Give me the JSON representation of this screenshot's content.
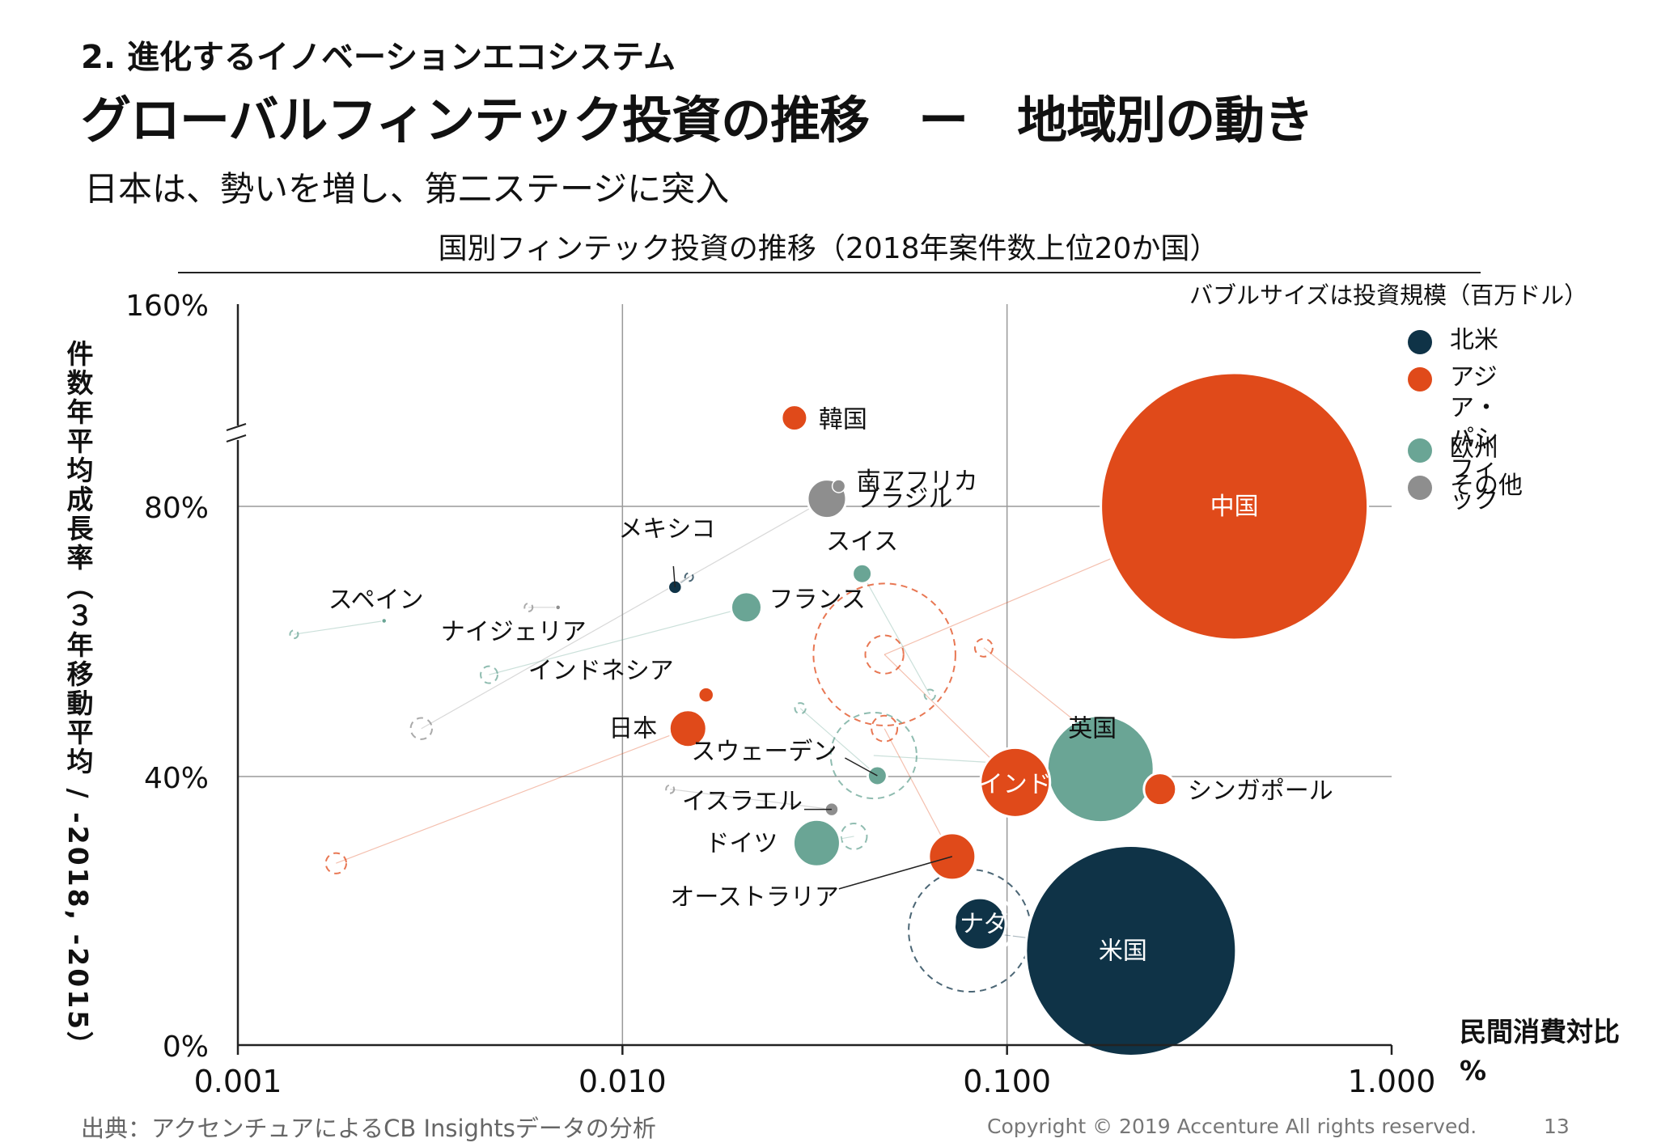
{
  "section": "2. 進化するイノベーションエコシステム",
  "title": "グローバルフィンテック投資の推移　ー　地域別の動き",
  "subtitle": "日本は、勢いを増し、第二ステージに突入",
  "source": "出典：アクセンチュアによるCB Insightsデータの分析",
  "copyright": "Copyright © 2019 Accenture  All rights reserved.",
  "page_number": "13",
  "colors": {
    "north_america": "#0f3347",
    "asia_pacific": "#e04a1a",
    "europe": "#6aa595",
    "other": "#8e8e8e"
  },
  "chart_data": {
    "type": "scatter",
    "title": "国別フィンテック投資の推移（2018年案件数上位20か国）",
    "xlabel": "民間消費対比 %",
    "ylabel": "件数年平均成長率（３年移動平均 / -2018, -2015）",
    "x_scale": "log",
    "xlim": [
      0.001,
      1.0
    ],
    "x_ticks": [
      "0.001",
      "0.010",
      "0.100",
      "1.000"
    ],
    "y_ticks": [
      "0%",
      "40%",
      "80%",
      "160%"
    ],
    "y_axis_break": true,
    "grid": true,
    "bubble_note": "バブルサイズは投資規模（百万ドル）",
    "legend": {
      "position": "top-right",
      "items": [
        {
          "label": "北米",
          "region": "north_america"
        },
        {
          "label": "アジア・\nパシフィック",
          "region": "asia_pacific"
        },
        {
          "label": "欧州",
          "region": "europe"
        },
        {
          "label": "その他",
          "region": "other"
        }
      ]
    },
    "series": [
      {
        "name": "中国",
        "region": "asia_pacific",
        "x": 0.39,
        "y": 0.8,
        "size": 165,
        "prev": {
          "x": 0.048,
          "y": 0.58
        }
      },
      {
        "name": "米国",
        "region": "north_america",
        "x": 0.21,
        "y": 0.14,
        "size": 130,
        "prev": {
          "x": 0.08,
          "y": 0.17
        }
      },
      {
        "name": "英国",
        "region": "europe",
        "x": 0.175,
        "y": 0.41,
        "size": 66,
        "prev": {
          "x": 0.045,
          "y": 0.43
        }
      },
      {
        "name": "インド",
        "region": "asia_pacific",
        "x": 0.105,
        "y": 0.39,
        "size": 43,
        "prev": {
          "x": 0.048,
          "y": 0.58
        }
      },
      {
        "name": "シンガポール",
        "region": "asia_pacific",
        "x": 0.25,
        "y": 0.38,
        "size": 20,
        "prev": {
          "x": 0.087,
          "y": 0.59
        }
      },
      {
        "name": "カナダ",
        "region": "north_america",
        "x": 0.085,
        "y": 0.18,
        "size": 32,
        "prev": {
          "x": 0.085,
          "y": 0.18
        }
      },
      {
        "name": "オーストラリア",
        "region": "asia_pacific",
        "x": 0.072,
        "y": 0.28,
        "size": 29,
        "prev": {
          "x": 0.048,
          "y": 0.47
        }
      },
      {
        "name": "ドイツ",
        "region": "europe",
        "x": 0.032,
        "y": 0.3,
        "size": 29,
        "prev": {
          "x": 0.04,
          "y": 0.31
        }
      },
      {
        "name": "イスラエル",
        "region": "other",
        "x": 0.035,
        "y": 0.35,
        "size": 8,
        "prev": {
          "x": 0.0133,
          "y": 0.38
        }
      },
      {
        "name": "スウェーデン",
        "region": "europe",
        "x": 0.046,
        "y": 0.4,
        "size": 12,
        "prev": {
          "x": 0.029,
          "y": 0.5
        }
      },
      {
        "name": "日本",
        "region": "asia_pacific",
        "x": 0.0148,
        "y": 0.47,
        "size": 23,
        "prev": {
          "x": 0.0018,
          "y": 0.27
        }
      },
      {
        "name": "インドネシア",
        "region": "asia_pacific",
        "x": 0.0165,
        "y": 0.52,
        "size": 9,
        "prev": {
          "x": 0.0165,
          "y": 0.52
        }
      },
      {
        "name": "フランス",
        "region": "europe",
        "x": 0.021,
        "y": 0.65,
        "size": 19,
        "prev": {
          "x": 0.0045,
          "y": 0.55
        }
      },
      {
        "name": "スイス",
        "region": "europe",
        "x": 0.042,
        "y": 0.7,
        "size": 12,
        "prev": {
          "x": 0.063,
          "y": 0.52
        }
      },
      {
        "name": "メキシコ",
        "region": "north_america",
        "x": 0.0137,
        "y": 0.68,
        "size": 8,
        "prev": {
          "x": 0.0149,
          "y": 0.695
        }
      },
      {
        "name": "スペイン",
        "region": "europe",
        "x": 0.0024,
        "y": 0.63,
        "size": 3,
        "prev": {
          "x": 0.0014,
          "y": 0.61
        }
      },
      {
        "name": "ナイジェリア",
        "region": "other",
        "x": 0.0068,
        "y": 0.65,
        "size": 3,
        "prev": {
          "x": 0.0057,
          "y": 0.65
        }
      },
      {
        "name": "南アフリカ",
        "region": "other",
        "x": 0.0365,
        "y": 0.88,
        "size": 8,
        "prev": {
          "x": 0.0365,
          "y": 0.88
        }
      },
      {
        "name": "ブラジル",
        "region": "other",
        "x": 0.034,
        "y": 0.83,
        "size": 24,
        "prev": {
          "x": 0.003,
          "y": 0.47
        }
      },
      {
        "name": "韓国",
        "region": "asia_pacific",
        "x": 0.028,
        "y": 1.15,
        "size": 16,
        "prev": {
          "x": 0.028,
          "y": 1.15
        }
      }
    ]
  }
}
